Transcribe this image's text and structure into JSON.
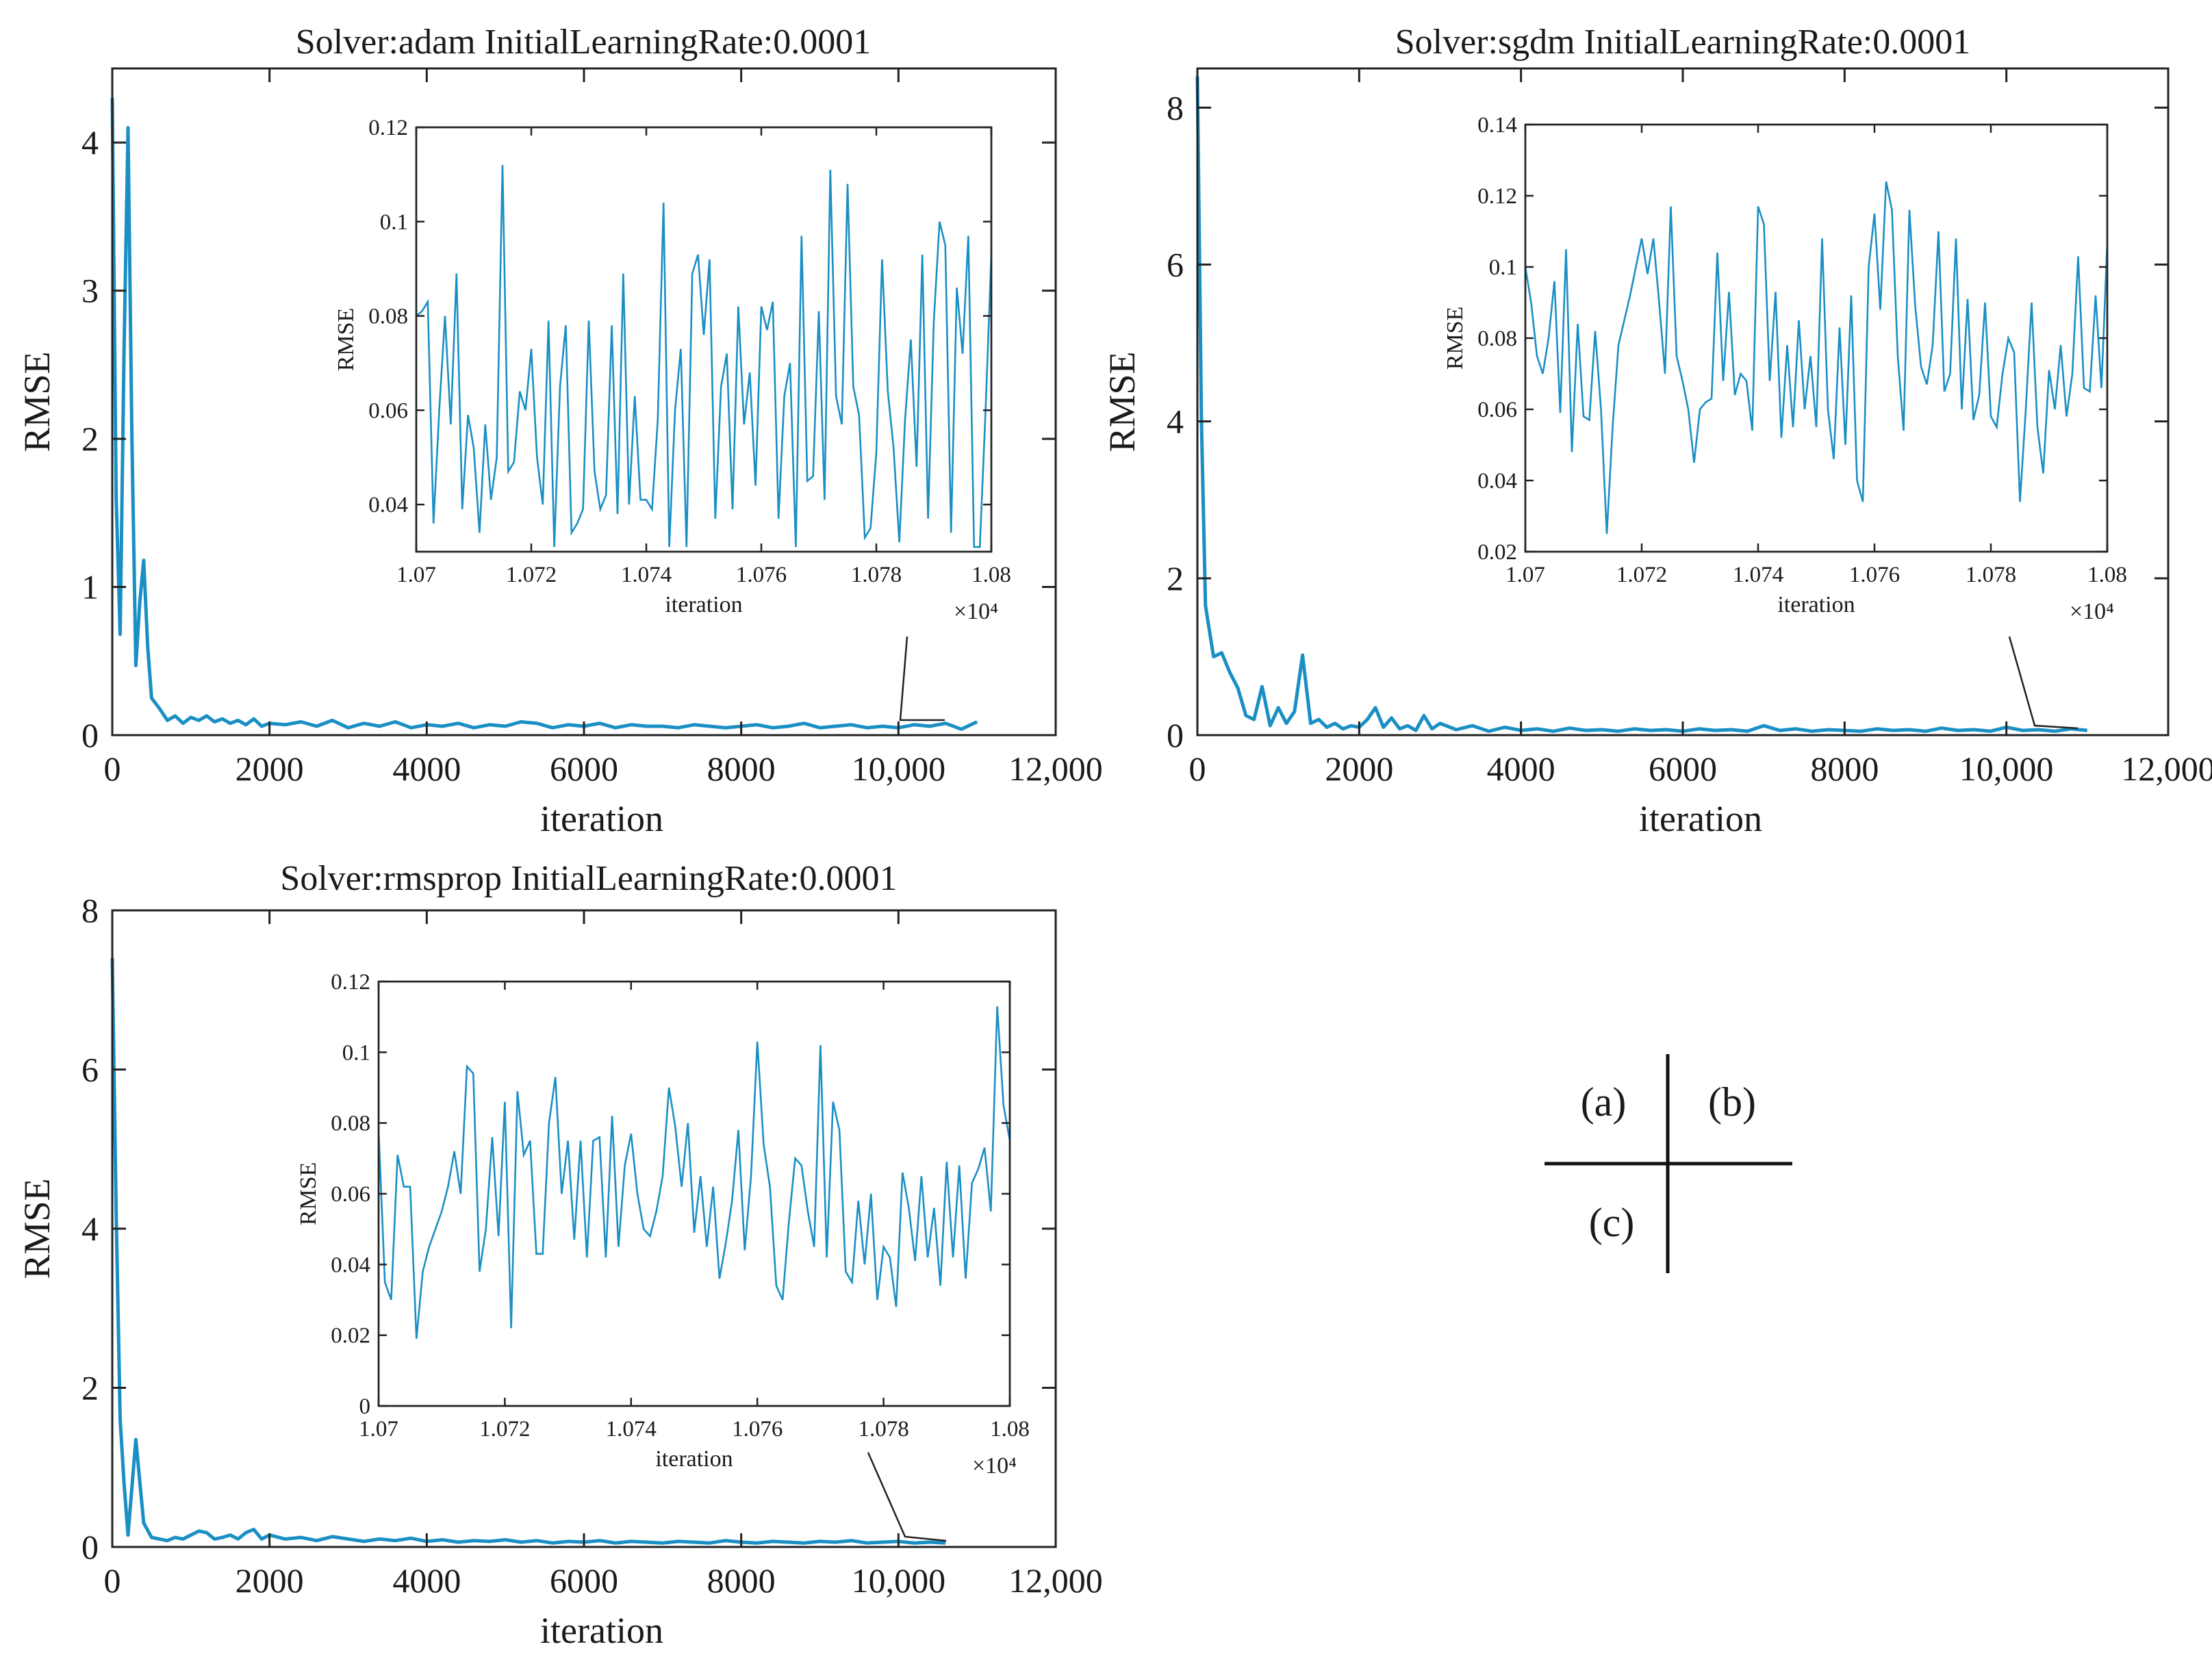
{
  "figure": {
    "legend_key": {
      "cells": [
        "(a)",
        "(b)",
        "(c)"
      ]
    }
  },
  "chart_data": [
    {
      "id": "a",
      "type": "line",
      "title": "Solver:adam  InitialLearningRate:0.0001",
      "xlabel": "iteration",
      "ylabel": "RMSE",
      "xlim": [
        0,
        12000
      ],
      "ylim": [
        0,
        4.5
      ],
      "x_ticks": [
        0,
        2000,
        4000,
        6000,
        8000,
        10000,
        12000
      ],
      "x_tick_labels": [
        "0",
        "2000",
        "4000",
        "6000",
        "8000",
        "10,000",
        "12,000"
      ],
      "y_ticks": [
        0,
        1,
        2,
        3,
        4
      ],
      "y_tick_labels": [
        "0",
        "1",
        "2",
        "3",
        "4"
      ],
      "line_color": "#1a8fc4",
      "series": [
        {
          "name": "RMSE",
          "x": [
            0,
            50,
            100,
            150,
            200,
            250,
            300,
            350,
            400,
            450,
            500,
            600,
            700,
            800,
            900,
            1000,
            1100,
            1200,
            1300,
            1400,
            1500,
            1600,
            1700,
            1800,
            1900,
            2000,
            2200,
            2400,
            2600,
            2800,
            3000,
            3200,
            3400,
            3600,
            3800,
            4000,
            4200,
            4400,
            4600,
            4800,
            5000,
            5200,
            5400,
            5600,
            5800,
            6000,
            6200,
            6400,
            6600,
            6800,
            7000,
            7200,
            7400,
            7600,
            7800,
            8000,
            8200,
            8400,
            8600,
            8800,
            9000,
            9200,
            9400,
            9600,
            9800,
            10000,
            10200,
            10400,
            10600,
            10800,
            11000
          ],
          "y": [
            4.3,
            1.6,
            0.68,
            2.6,
            4.1,
            2.0,
            0.47,
            0.9,
            1.18,
            0.6,
            0.25,
            0.18,
            0.1,
            0.13,
            0.08,
            0.12,
            0.1,
            0.13,
            0.09,
            0.11,
            0.08,
            0.1,
            0.07,
            0.11,
            0.06,
            0.08,
            0.07,
            0.09,
            0.06,
            0.1,
            0.05,
            0.08,
            0.06,
            0.09,
            0.05,
            0.07,
            0.06,
            0.08,
            0.05,
            0.07,
            0.06,
            0.09,
            0.08,
            0.05,
            0.07,
            0.06,
            0.08,
            0.05,
            0.07,
            0.06,
            0.06,
            0.05,
            0.07,
            0.06,
            0.05,
            0.06,
            0.07,
            0.05,
            0.06,
            0.08,
            0.05,
            0.06,
            0.07,
            0.05,
            0.06,
            0.05,
            0.07,
            0.06,
            0.08,
            0.04,
            0.09
          ]
        }
      ],
      "inset": {
        "xlabel": "iteration",
        "ylabel": "RMSE",
        "xlim": [
          10700,
          10800
        ],
        "ylim": [
          0.03,
          0.12
        ],
        "x_ticks": [
          10700,
          10720,
          10740,
          10760,
          10780,
          10800
        ],
        "x_tick_labels": [
          "1.07",
          "1.072",
          "1.074",
          "1.076",
          "1.078",
          "1.08"
        ],
        "x_multiplier": "×10⁴",
        "y_ticks": [
          0.04,
          0.06,
          0.08,
          0.1,
          0.12
        ],
        "y_tick_labels": [
          "0.04",
          "0.06",
          "0.08",
          "0.1",
          "0.12"
        ],
        "y": [
          0.08,
          0.081,
          0.083,
          0.036,
          0.06,
          0.08,
          0.057,
          0.089,
          0.039,
          0.059,
          0.052,
          0.034,
          0.057,
          0.041,
          0.05,
          0.112,
          0.047,
          0.049,
          0.064,
          0.06,
          0.073,
          0.05,
          0.04,
          0.079,
          0.031,
          0.065,
          0.078,
          0.034,
          0.036,
          0.039,
          0.079,
          0.047,
          0.039,
          0.042,
          0.078,
          0.038,
          0.089,
          0.04,
          0.063,
          0.041,
          0.041,
          0.039,
          0.058,
          0.104,
          0.031,
          0.06,
          0.073,
          0.031,
          0.089,
          0.093,
          0.076,
          0.092,
          0.037,
          0.065,
          0.072,
          0.039,
          0.082,
          0.057,
          0.068,
          0.044,
          0.082,
          0.077,
          0.083,
          0.037,
          0.063,
          0.07,
          0.031,
          0.097,
          0.045,
          0.046,
          0.081,
          0.041,
          0.111,
          0.063,
          0.057,
          0.108,
          0.065,
          0.059,
          0.033,
          0.035,
          0.051,
          0.092,
          0.064,
          0.052,
          0.032,
          0.058,
          0.075,
          0.048,
          0.093,
          0.037,
          0.079,
          0.1,
          0.095,
          0.034,
          0.086,
          0.072,
          0.097,
          0.031,
          0.031,
          0.06,
          0.093
        ]
      }
    },
    {
      "id": "b",
      "type": "line",
      "title": "Solver:sgdm  InitialLearningRate:0.0001",
      "xlabel": "iteration",
      "ylabel": "RMSE",
      "xlim": [
        0,
        12000
      ],
      "ylim": [
        0,
        8.5
      ],
      "x_ticks": [
        0,
        2000,
        4000,
        6000,
        8000,
        10000,
        12000
      ],
      "x_tick_labels": [
        "0",
        "2000",
        "4000",
        "6000",
        "8000",
        "10,000",
        "12,000"
      ],
      "y_ticks": [
        0,
        2,
        4,
        6,
        8
      ],
      "y_tick_labels": [
        "0",
        "2",
        "4",
        "6",
        "8"
      ],
      "line_color": "#1a8fc4",
      "series": [
        {
          "name": "RMSE",
          "x": [
            0,
            50,
            100,
            200,
            300,
            400,
            500,
            600,
            700,
            800,
            900,
            1000,
            1100,
            1200,
            1300,
            1400,
            1500,
            1600,
            1700,
            1800,
            1900,
            2000,
            2100,
            2200,
            2300,
            2400,
            2500,
            2600,
            2700,
            2800,
            2900,
            3000,
            3200,
            3400,
            3600,
            3800,
            4000,
            4200,
            4400,
            4600,
            4800,
            5000,
            5200,
            5400,
            5600,
            5800,
            6000,
            6200,
            6400,
            6600,
            6800,
            7000,
            7200,
            7400,
            7600,
            7800,
            8000,
            8200,
            8400,
            8600,
            8800,
            9000,
            9200,
            9400,
            9600,
            9800,
            10000,
            10200,
            10400,
            10600,
            10800,
            11000
          ],
          "y": [
            8.4,
            4.0,
            1.65,
            1.0,
            1.05,
            0.8,
            0.6,
            0.25,
            0.2,
            0.62,
            0.12,
            0.35,
            0.15,
            0.3,
            1.02,
            0.15,
            0.2,
            0.1,
            0.15,
            0.08,
            0.12,
            0.1,
            0.2,
            0.35,
            0.1,
            0.22,
            0.08,
            0.12,
            0.06,
            0.25,
            0.08,
            0.15,
            0.07,
            0.12,
            0.05,
            0.1,
            0.06,
            0.08,
            0.05,
            0.09,
            0.06,
            0.07,
            0.05,
            0.08,
            0.06,
            0.07,
            0.05,
            0.08,
            0.06,
            0.07,
            0.05,
            0.12,
            0.06,
            0.08,
            0.05,
            0.07,
            0.06,
            0.05,
            0.08,
            0.06,
            0.07,
            0.05,
            0.09,
            0.06,
            0.07,
            0.05,
            0.1,
            0.06,
            0.07,
            0.05,
            0.08,
            0.06
          ]
        }
      ],
      "inset": {
        "xlabel": "iteration",
        "ylabel": "RMSE",
        "xlim": [
          10700,
          10800
        ],
        "ylim": [
          0.02,
          0.14
        ],
        "x_ticks": [
          10700,
          10720,
          10740,
          10760,
          10780,
          10800
        ],
        "x_tick_labels": [
          "1.07",
          "1.072",
          "1.074",
          "1.076",
          "1.078",
          "1.08"
        ],
        "x_multiplier": "×10⁴",
        "y_ticks": [
          0.02,
          0.04,
          0.06,
          0.08,
          0.1,
          0.12,
          0.14
        ],
        "y_tick_labels": [
          "0.02",
          "0.04",
          "0.06",
          "0.08",
          "0.1",
          "0.12",
          "0.14"
        ],
        "y": [
          0.1,
          0.09,
          0.075,
          0.07,
          0.08,
          0.096,
          0.059,
          0.105,
          0.048,
          0.084,
          0.058,
          0.057,
          0.082,
          0.06,
          0.025,
          0.055,
          0.078,
          0.085,
          0.092,
          0.1,
          0.108,
          0.098,
          0.108,
          0.09,
          0.07,
          0.117,
          0.075,
          0.068,
          0.06,
          0.045,
          0.06,
          0.062,
          0.063,
          0.104,
          0.068,
          0.093,
          0.064,
          0.07,
          0.068,
          0.054,
          0.117,
          0.112,
          0.068,
          0.093,
          0.052,
          0.078,
          0.055,
          0.085,
          0.06,
          0.075,
          0.055,
          0.108,
          0.06,
          0.046,
          0.083,
          0.05,
          0.092,
          0.04,
          0.034,
          0.1,
          0.115,
          0.088,
          0.124,
          0.116,
          0.075,
          0.054,
          0.116,
          0.089,
          0.072,
          0.067,
          0.078,
          0.11,
          0.065,
          0.07,
          0.108,
          0.06,
          0.091,
          0.057,
          0.064,
          0.09,
          0.058,
          0.055,
          0.07,
          0.08,
          0.076,
          0.034,
          0.06,
          0.09,
          0.055,
          0.042,
          0.071,
          0.06,
          0.078,
          0.058,
          0.07,
          0.103,
          0.066,
          0.065,
          0.092,
          0.066,
          0.107
        ]
      }
    },
    {
      "id": "c",
      "type": "line",
      "title": "Solver:rmsprop InitialLearningRate:0.0001",
      "xlabel": "iteration",
      "ylabel": "RMSE",
      "xlim": [
        0,
        12000
      ],
      "ylim": [
        0,
        8
      ],
      "x_ticks": [
        0,
        2000,
        4000,
        6000,
        8000,
        10000,
        12000
      ],
      "x_tick_labels": [
        "0",
        "2000",
        "4000",
        "6000",
        "8000",
        "10,000",
        "12,000"
      ],
      "y_ticks": [
        0,
        2,
        4,
        6,
        8
      ],
      "y_tick_labels": [
        "0",
        "2",
        "4",
        "6",
        "8"
      ],
      "line_color": "#1a8fc4",
      "series": [
        {
          "name": "RMSE",
          "x": [
            0,
            50,
            100,
            150,
            200,
            300,
            400,
            500,
            600,
            700,
            800,
            900,
            1000,
            1100,
            1200,
            1300,
            1400,
            1500,
            1600,
            1700,
            1800,
            1900,
            2000,
            2200,
            2400,
            2600,
            2800,
            3000,
            3200,
            3400,
            3600,
            3800,
            4000,
            4200,
            4400,
            4600,
            4800,
            5000,
            5200,
            5400,
            5600,
            5800,
            6000,
            6200,
            6400,
            6600,
            6800,
            7000,
            7200,
            7400,
            7600,
            7800,
            8000,
            8200,
            8400,
            8600,
            8800,
            9000,
            9200,
            9400,
            9600,
            9800,
            10000,
            10200,
            10400,
            10600
          ],
          "y": [
            7.4,
            4.2,
            1.6,
            0.8,
            0.15,
            1.35,
            0.3,
            0.12,
            0.1,
            0.08,
            0.12,
            0.1,
            0.15,
            0.2,
            0.18,
            0.1,
            0.12,
            0.15,
            0.1,
            0.18,
            0.22,
            0.1,
            0.15,
            0.1,
            0.12,
            0.08,
            0.13,
            0.1,
            0.07,
            0.1,
            0.08,
            0.11,
            0.07,
            0.09,
            0.06,
            0.08,
            0.07,
            0.09,
            0.06,
            0.08,
            0.05,
            0.07,
            0.06,
            0.08,
            0.05,
            0.07,
            0.06,
            0.05,
            0.07,
            0.06,
            0.05,
            0.08,
            0.06,
            0.05,
            0.07,
            0.06,
            0.05,
            0.07,
            0.06,
            0.08,
            0.05,
            0.06,
            0.07,
            0.05,
            0.06,
            0.05
          ]
        }
      ],
      "inset": {
        "xlabel": "iteration",
        "ylabel": "RMSE",
        "xlim": [
          10700,
          10800
        ],
        "ylim": [
          0,
          0.12
        ],
        "x_ticks": [
          10700,
          10720,
          10740,
          10760,
          10780,
          10800
        ],
        "x_tick_labels": [
          "1.07",
          "1.072",
          "1.074",
          "1.076",
          "1.078",
          "1.08"
        ],
        "x_multiplier": "×10⁴",
        "y_ticks": [
          0,
          0.02,
          0.04,
          0.06,
          0.08,
          0.1,
          0.12
        ],
        "y_tick_labels": [
          "0",
          "0.02",
          "0.04",
          "0.06",
          "0.08",
          "0.1",
          "0.12"
        ],
        "y": [
          0.078,
          0.035,
          0.03,
          0.071,
          0.062,
          0.062,
          0.019,
          0.038,
          0.045,
          0.05,
          0.055,
          0.062,
          0.072,
          0.06,
          0.096,
          0.094,
          0.038,
          0.05,
          0.076,
          0.048,
          0.086,
          0.022,
          0.089,
          0.071,
          0.075,
          0.043,
          0.043,
          0.08,
          0.093,
          0.06,
          0.075,
          0.047,
          0.075,
          0.042,
          0.075,
          0.076,
          0.042,
          0.082,
          0.045,
          0.068,
          0.077,
          0.06,
          0.05,
          0.048,
          0.055,
          0.065,
          0.09,
          0.079,
          0.062,
          0.08,
          0.049,
          0.065,
          0.045,
          0.062,
          0.036,
          0.046,
          0.058,
          0.078,
          0.044,
          0.065,
          0.103,
          0.074,
          0.062,
          0.034,
          0.03,
          0.052,
          0.07,
          0.068,
          0.055,
          0.045,
          0.102,
          0.042,
          0.086,
          0.078,
          0.038,
          0.035,
          0.058,
          0.04,
          0.06,
          0.03,
          0.045,
          0.042,
          0.028,
          0.066,
          0.056,
          0.041,
          0.065,
          0.042,
          0.056,
          0.034,
          0.069,
          0.042,
          0.068,
          0.036,
          0.063,
          0.067,
          0.073,
          0.055,
          0.113,
          0.085,
          0.075
        ]
      }
    }
  ]
}
